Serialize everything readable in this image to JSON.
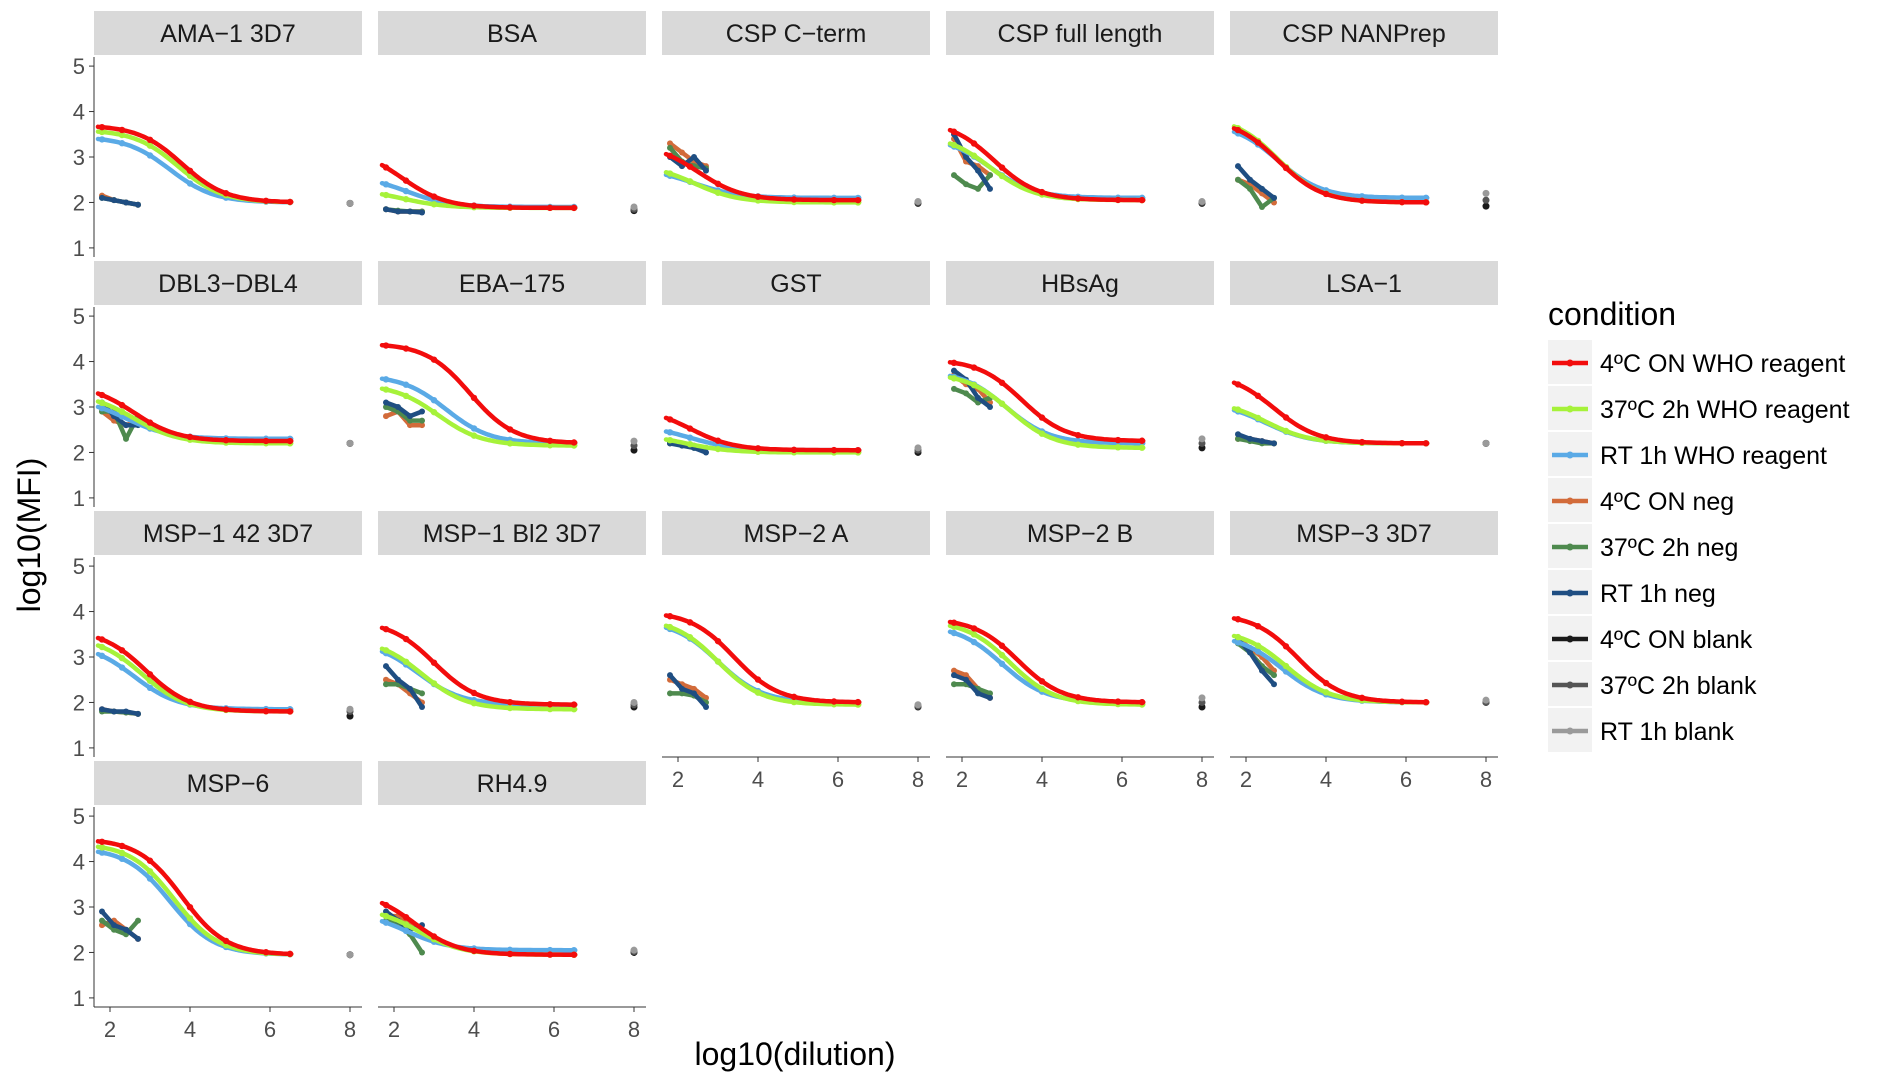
{
  "chart_data": {
    "type": "line",
    "xlabel": "log10(dilution)",
    "ylabel": "log10(MFI)",
    "xlim": [
      1.6,
      8.3
    ],
    "ylim": [
      0.8,
      5.2
    ],
    "x_ticks": [
      "2",
      "4",
      "6",
      "8"
    ],
    "y_ticks": [
      "1",
      "2",
      "3",
      "4",
      "5"
    ],
    "legend": {
      "title": "condition",
      "placement": "right",
      "entries": [
        {
          "label": "4ºC ON WHO reagent",
          "color": "#f20c0c"
        },
        {
          "label": "37ºC 2h WHO reagent",
          "color": "#a6f23a"
        },
        {
          "label": "RT 1h WHO reagent",
          "color": "#5aaae6"
        },
        {
          "label": "4ºC ON neg",
          "color": "#d26b3a"
        },
        {
          "label": "37ºC 2h neg",
          "color": "#4e8a4e"
        },
        {
          "label": "RT 1h neg",
          "color": "#1f4e82"
        },
        {
          "label": "4ºC ON blank",
          "color": "#1a1a1a"
        },
        {
          "label": "37ºC 2h blank",
          "color": "#555555"
        },
        {
          "label": "RT 1h blank",
          "color": "#9a9a9a"
        }
      ]
    },
    "panels": [
      {
        "name": "AMA−1 3D7",
        "reagent": [
          {
            "start": 3.7,
            "end": 2.0,
            "mid": 3.8
          },
          {
            "start": 3.6,
            "end": 2.0,
            "mid": 3.7
          },
          {
            "start": 3.45,
            "end": 2.0,
            "mid": 3.5
          }
        ],
        "neg": [
          [
            2.15,
            2.05,
            2.0,
            1.95
          ],
          [
            2.1,
            2.05,
            2.0,
            1.95
          ],
          [
            2.1,
            2.05,
            2.0,
            1.95
          ]
        ],
        "blank": [
          1.98,
          1.98,
          1.98
        ]
      },
      {
        "name": "BSA",
        "reagent": [
          {
            "start": 3.2,
            "end": 1.88,
            "mid": 2.2
          },
          {
            "start": 2.3,
            "end": 1.88,
            "mid": 2.2
          },
          {
            "start": 2.6,
            "end": 1.9,
            "mid": 2.3
          }
        ],
        "neg": [
          [
            1.85,
            1.8,
            1.8,
            1.8
          ],
          [
            1.85,
            1.82,
            1.8,
            1.8
          ],
          [
            1.85,
            1.8,
            1.8,
            1.78
          ]
        ],
        "blank": [
          1.82,
          1.85,
          1.9
        ]
      },
      {
        "name": "CSP C−term",
        "reagent": [
          {
            "start": 3.3,
            "end": 2.05,
            "mid": 2.5
          },
          {
            "start": 2.85,
            "end": 2.0,
            "mid": 2.4
          },
          {
            "start": 2.75,
            "end": 2.1,
            "mid": 2.4
          }
        ],
        "neg": [
          [
            3.3,
            3.1,
            2.9,
            2.8
          ],
          [
            3.2,
            2.9,
            2.8,
            2.75
          ],
          [
            3.0,
            2.8,
            3.0,
            2.7
          ]
        ],
        "blank": [
          1.98,
          2.0,
          2.02
        ]
      },
      {
        "name": "CSP full length",
        "reagent": [
          {
            "start": 3.8,
            "end": 2.05,
            "mid": 2.8
          },
          {
            "start": 3.5,
            "end": 2.05,
            "mid": 2.7
          },
          {
            "start": 3.45,
            "end": 2.1,
            "mid": 2.7
          }
        ],
        "neg": [
          [
            3.4,
            2.9,
            2.8,
            2.6
          ],
          [
            2.6,
            2.4,
            2.3,
            2.6
          ],
          [
            3.5,
            3.0,
            2.7,
            2.3
          ]
        ],
        "blank": [
          1.98,
          2.0,
          2.02
        ]
      },
      {
        "name": "CSP NANPrep",
        "reagent": [
          {
            "start": 3.85,
            "end": 2.0,
            "mid": 2.8
          },
          {
            "start": 3.9,
            "end": 2.0,
            "mid": 2.8
          },
          {
            "start": 3.75,
            "end": 2.1,
            "mid": 2.8
          }
        ],
        "neg": [
          [
            2.5,
            2.4,
            2.2,
            2.0
          ],
          [
            2.5,
            2.3,
            1.9,
            2.1
          ],
          [
            2.8,
            2.5,
            2.3,
            2.1
          ]
        ],
        "blank": [
          1.92,
          2.05,
          2.2
        ]
      },
      {
        "name": "DBL3−DBL4",
        "reagent": [
          {
            "start": 3.5,
            "end": 2.25,
            "mid": 2.6
          },
          {
            "start": 3.3,
            "end": 2.2,
            "mid": 2.6
          },
          {
            "start": 3.2,
            "end": 2.3,
            "mid": 2.4
          }
        ],
        "neg": [
          [
            2.9,
            2.7,
            2.6,
            2.7
          ],
          [
            2.9,
            2.9,
            2.3,
            2.8
          ],
          [
            3.1,
            2.8,
            2.6,
            2.6
          ]
        ],
        "blank": [
          2.2,
          2.2,
          2.2
        ]
      },
      {
        "name": "EBA−175",
        "reagent": [
          {
            "start": 4.4,
            "end": 2.2,
            "mid": 3.9
          },
          {
            "start": 3.5,
            "end": 2.15,
            "mid": 3.1
          },
          {
            "start": 3.7,
            "end": 2.2,
            "mid": 3.3
          }
        ],
        "neg": [
          [
            2.8,
            2.9,
            2.6,
            2.6
          ],
          [
            3.0,
            2.9,
            2.7,
            2.7
          ],
          [
            3.1,
            3.0,
            2.8,
            2.9
          ]
        ],
        "blank": [
          2.05,
          2.15,
          2.25
        ]
      },
      {
        "name": "GST",
        "reagent": [
          {
            "start": 3.0,
            "end": 2.05,
            "mid": 2.3
          },
          {
            "start": 2.4,
            "end": 2.0,
            "mid": 2.2
          },
          {
            "start": 2.6,
            "end": 2.05,
            "mid": 2.3
          }
        ],
        "neg": [
          [
            2.2,
            2.2,
            2.15,
            2.1
          ],
          [
            2.2,
            2.2,
            2.1,
            2.1
          ],
          [
            2.2,
            2.15,
            2.1,
            2.0
          ]
        ],
        "blank": [
          2.0,
          2.05,
          2.1
        ]
      },
      {
        "name": "HBsAg",
        "reagent": [
          {
            "start": 4.05,
            "end": 2.25,
            "mid": 3.5
          },
          {
            "start": 3.75,
            "end": 2.1,
            "mid": 3.2
          },
          {
            "start": 3.8,
            "end": 2.2,
            "mid": 3.1
          }
        ],
        "neg": [
          [
            3.7,
            3.5,
            3.4,
            3.1
          ],
          [
            3.4,
            3.3,
            3.1,
            3.2
          ],
          [
            3.8,
            3.6,
            3.2,
            3.0
          ]
        ],
        "blank": [
          2.1,
          2.2,
          2.3
        ]
      },
      {
        "name": "LSA−1",
        "reagent": [
          {
            "start": 3.75,
            "end": 2.2,
            "mid": 2.7
          },
          {
            "start": 3.15,
            "end": 2.2,
            "mid": 2.5
          },
          {
            "start": 3.1,
            "end": 2.2,
            "mid": 2.5
          }
        ],
        "neg": [
          [
            2.3,
            2.3,
            2.25,
            2.2
          ],
          [
            2.3,
            2.25,
            2.2,
            2.2
          ],
          [
            2.4,
            2.3,
            2.25,
            2.2
          ]
        ],
        "blank": [
          2.2,
          2.2,
          2.2
        ]
      },
      {
        "name": "MSP−1 42 3D7",
        "reagent": [
          {
            "start": 3.6,
            "end": 1.8,
            "mid": 2.9
          },
          {
            "start": 3.45,
            "end": 1.8,
            "mid": 2.8
          },
          {
            "start": 3.3,
            "end": 1.85,
            "mid": 2.6
          }
        ],
        "neg": [
          [
            1.85,
            1.8,
            1.78,
            1.75
          ],
          [
            1.8,
            1.8,
            1.78,
            1.75
          ],
          [
            1.85,
            1.8,
            1.8,
            1.75
          ]
        ],
        "blank": [
          1.7,
          1.8,
          1.85
        ]
      },
      {
        "name": "MSP−1 Bl2 3D7",
        "reagent": [
          {
            "start": 3.8,
            "end": 1.95,
            "mid": 3.0
          },
          {
            "start": 3.4,
            "end": 1.85,
            "mid": 2.7
          },
          {
            "start": 3.35,
            "end": 1.95,
            "mid": 2.6
          }
        ],
        "neg": [
          [
            2.5,
            2.4,
            2.2,
            2.0
          ],
          [
            2.4,
            2.4,
            2.3,
            2.2
          ],
          [
            2.8,
            2.5,
            2.3,
            1.9
          ]
        ],
        "blank": [
          1.9,
          1.95,
          2.0
        ]
      },
      {
        "name": "MSP−2 A",
        "reagent": [
          {
            "start": 4.0,
            "end": 2.0,
            "mid": 3.4
          },
          {
            "start": 3.85,
            "end": 1.95,
            "mid": 3.0
          },
          {
            "start": 3.8,
            "end": 2.0,
            "mid": 3.0
          }
        ],
        "neg": [
          [
            2.5,
            2.4,
            2.3,
            2.1
          ],
          [
            2.2,
            2.2,
            2.15,
            2.0
          ],
          [
            2.6,
            2.3,
            2.2,
            1.9
          ]
        ],
        "blank": [
          1.9,
          1.92,
          1.95
        ]
      },
      {
        "name": "MSP−2 B",
        "reagent": [
          {
            "start": 3.85,
            "end": 2.0,
            "mid": 3.4
          },
          {
            "start": 3.8,
            "end": 1.95,
            "mid": 3.2
          },
          {
            "start": 3.7,
            "end": 2.0,
            "mid": 3.0
          }
        ],
        "neg": [
          [
            2.7,
            2.6,
            2.3,
            2.1
          ],
          [
            2.4,
            2.4,
            2.3,
            2.2
          ],
          [
            2.6,
            2.5,
            2.2,
            2.1
          ]
        ],
        "blank": [
          1.9,
          2.0,
          2.1
        ]
      },
      {
        "name": "MSP−3 3D7",
        "reagent": [
          {
            "start": 3.95,
            "end": 2.0,
            "mid": 3.3
          },
          {
            "start": 3.6,
            "end": 2.0,
            "mid": 3.0
          },
          {
            "start": 3.5,
            "end": 2.0,
            "mid": 2.9
          }
        ],
        "neg": [
          [
            3.4,
            3.2,
            3.0,
            2.7
          ],
          [
            3.3,
            3.1,
            2.8,
            2.6
          ],
          [
            3.4,
            3.1,
            2.7,
            2.4
          ]
        ],
        "blank": [
          2.0,
          2.0,
          2.05
        ]
      },
      {
        "name": "MSP−6",
        "reagent": [
          {
            "start": 4.5,
            "end": 1.95,
            "mid": 3.8
          },
          {
            "start": 4.4,
            "end": 1.95,
            "mid": 3.6
          },
          {
            "start": 4.3,
            "end": 1.95,
            "mid": 3.5
          }
        ],
        "neg": [
          [
            2.6,
            2.7,
            2.5,
            2.3
          ],
          [
            2.7,
            2.5,
            2.4,
            2.7
          ],
          [
            2.9,
            2.6,
            2.5,
            2.3
          ]
        ],
        "blank": [
          1.95,
          1.95,
          1.95
        ]
      },
      {
        "name": "RH4.9",
        "reagent": [
          {
            "start": 3.35,
            "end": 1.95,
            "mid": 2.5
          },
          {
            "start": 3.0,
            "end": 1.95,
            "mid": 2.6
          },
          {
            "start": 2.9,
            "end": 2.05,
            "mid": 2.3
          }
        ],
        "neg": [
          [
            2.8,
            2.8,
            2.6,
            2.5
          ],
          [
            2.7,
            2.6,
            2.4,
            2.0
          ],
          [
            2.9,
            2.7,
            2.5,
            2.6
          ]
        ],
        "blank": [
          2.0,
          2.02,
          2.05
        ]
      }
    ]
  }
}
